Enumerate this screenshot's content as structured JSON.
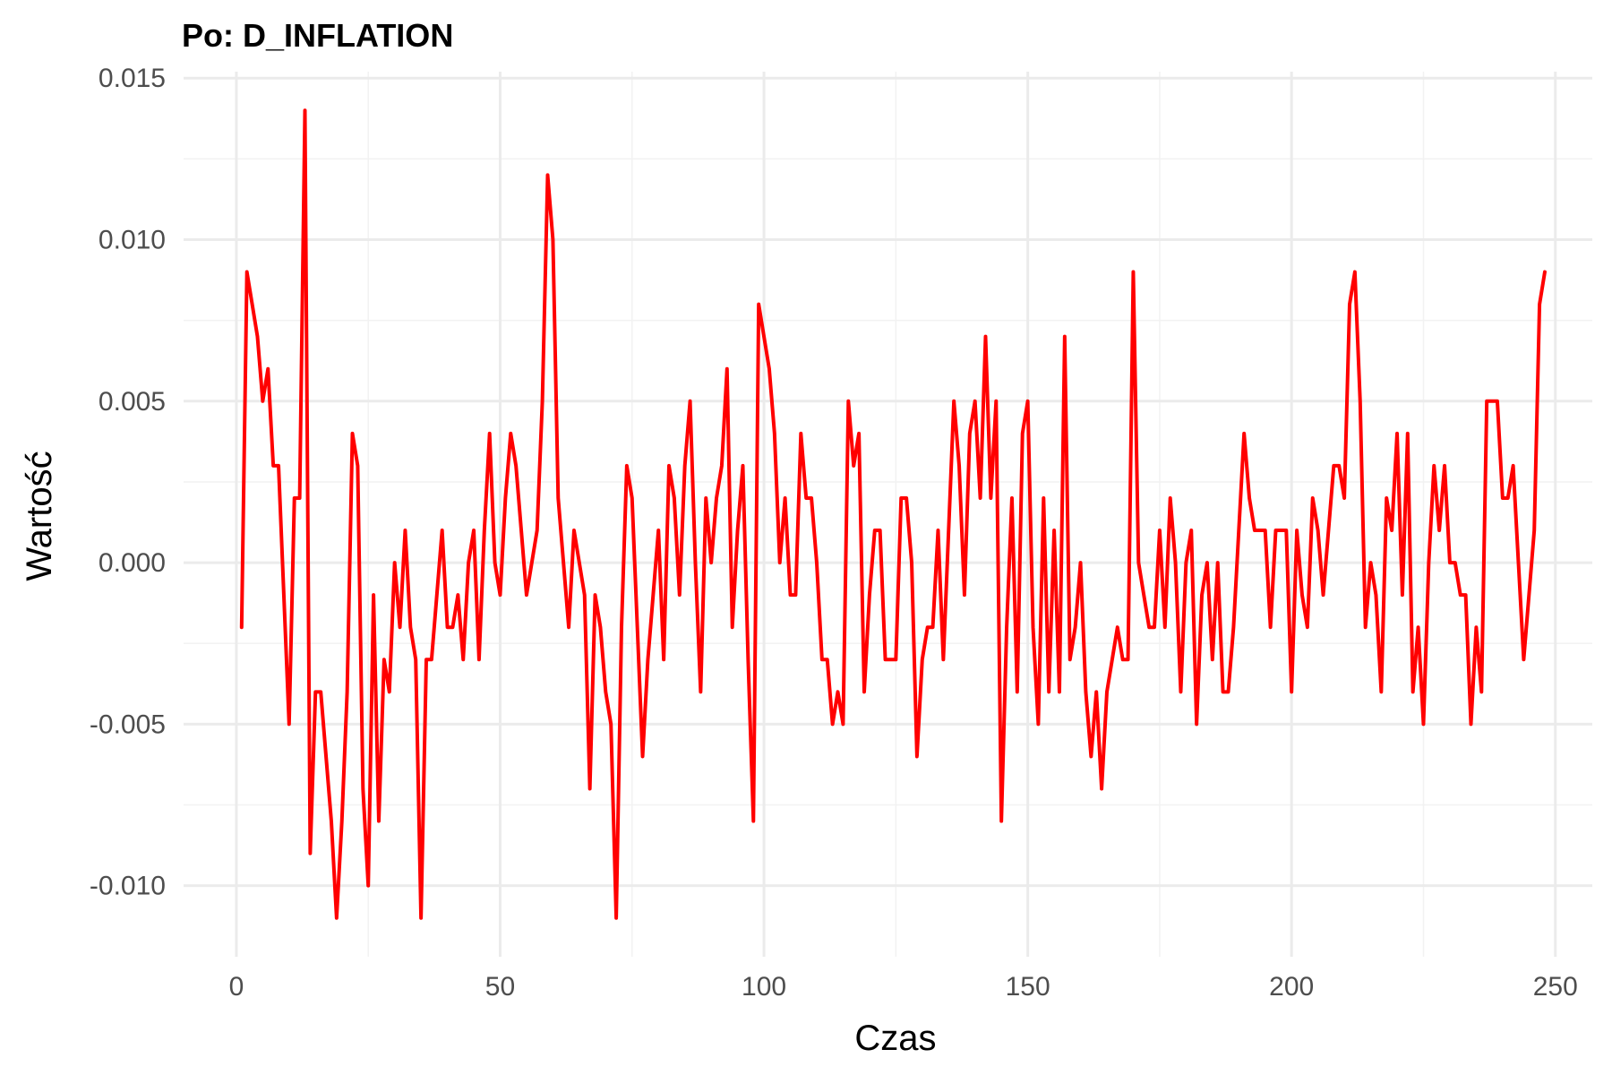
{
  "chart_data": {
    "type": "line",
    "title": "Po: D_INFLATION",
    "xlabel": "Czas",
    "ylabel": "Wartość",
    "xlim": [
      -10,
      257
    ],
    "ylim": [
      -0.0122,
      0.0152
    ],
    "x_ticks": [
      0,
      50,
      100,
      150,
      200,
      250
    ],
    "x_tick_labels": [
      "0",
      "50",
      "100",
      "150",
      "200",
      "250"
    ],
    "y_ticks": [
      -0.01,
      -0.005,
      0.0,
      0.005,
      0.01,
      0.015
    ],
    "y_tick_labels": [
      "-0.010",
      "-0.005",
      "0.000",
      "0.005",
      "0.010",
      "0.015"
    ],
    "grid": true,
    "legend": "none",
    "line_color": "#ff0000",
    "x_start": 1,
    "series": [
      {
        "values": [
          -0.002,
          0.009,
          0.008,
          0.007,
          0.005,
          0.006,
          0.003,
          0.003,
          -0.001,
          -0.005,
          0.002,
          0.002,
          0.014,
          -0.009,
          -0.004,
          -0.004,
          -0.006,
          -0.008,
          -0.011,
          -0.008,
          -0.004,
          0.004,
          0.003,
          -0.007,
          -0.01,
          -0.001,
          -0.008,
          -0.003,
          -0.004,
          0.0,
          -0.002,
          0.001,
          -0.002,
          -0.003,
          -0.011,
          -0.003,
          -0.003,
          -0.001,
          0.001,
          -0.002,
          -0.002,
          -0.001,
          -0.003,
          0.0,
          0.001,
          -0.003,
          0.001,
          0.004,
          0.0,
          -0.001,
          0.002,
          0.004,
          0.003,
          0.001,
          -0.001,
          0.0,
          0.001,
          0.005,
          0.012,
          0.01,
          0.002,
          0.0,
          -0.002,
          0.001,
          0.0,
          -0.001,
          -0.007,
          -0.001,
          -0.002,
          -0.004,
          -0.005,
          -0.011,
          -0.002,
          0.003,
          0.002,
          -0.002,
          -0.006,
          -0.003,
          -0.001,
          0.001,
          -0.003,
          0.003,
          0.002,
          -0.001,
          0.003,
          0.005,
          0.0,
          -0.004,
          0.002,
          0.0,
          0.002,
          0.003,
          0.006,
          -0.002,
          0.001,
          0.003,
          -0.003,
          -0.008,
          0.008,
          0.007,
          0.006,
          0.004,
          0.0,
          0.002,
          -0.001,
          -0.001,
          0.004,
          0.002,
          0.002,
          0.0,
          -0.003,
          -0.003,
          -0.005,
          -0.004,
          -0.005,
          0.005,
          0.003,
          0.004,
          -0.004,
          -0.001,
          0.001,
          0.001,
          -0.003,
          -0.003,
          -0.003,
          0.002,
          0.002,
          0.0,
          -0.006,
          -0.003,
          -0.002,
          -0.002,
          0.001,
          -0.003,
          0.001,
          0.005,
          0.003,
          -0.001,
          0.004,
          0.005,
          0.002,
          0.007,
          0.002,
          0.005,
          -0.008,
          -0.002,
          0.002,
          -0.004,
          0.004,
          0.005,
          -0.002,
          -0.005,
          0.002,
          -0.004,
          0.001,
          -0.004,
          0.007,
          -0.003,
          -0.002,
          0.0,
          -0.004,
          -0.006,
          -0.004,
          -0.007,
          -0.004,
          -0.003,
          -0.002,
          -0.003,
          -0.003,
          0.009,
          0.0,
          -0.001,
          -0.002,
          -0.002,
          0.001,
          -0.002,
          0.002,
          0.0,
          -0.004,
          0.0,
          0.001,
          -0.005,
          -0.001,
          0.0,
          -0.003,
          0.0,
          -0.004,
          -0.004,
          -0.002,
          0.001,
          0.004,
          0.002,
          0.001,
          0.001,
          0.001,
          -0.002,
          0.001,
          0.001,
          0.001,
          -0.004,
          0.001,
          -0.001,
          -0.002,
          0.002,
          0.001,
          -0.001,
          0.001,
          0.003,
          0.003,
          0.002,
          0.008,
          0.009,
          0.005,
          -0.002,
          0.0,
          -0.001,
          -0.004,
          0.002,
          0.001,
          0.004,
          -0.001,
          0.004,
          -0.004,
          -0.002,
          -0.005,
          0.0,
          0.003,
          0.001,
          0.003,
          0.0,
          0.0,
          -0.001,
          -0.001,
          -0.005,
          -0.002,
          -0.004,
          0.005,
          0.005,
          0.005,
          0.002,
          0.002,
          0.003,
          0.0,
          -0.003,
          -0.001,
          0.001,
          0.008,
          0.009
        ]
      }
    ]
  }
}
